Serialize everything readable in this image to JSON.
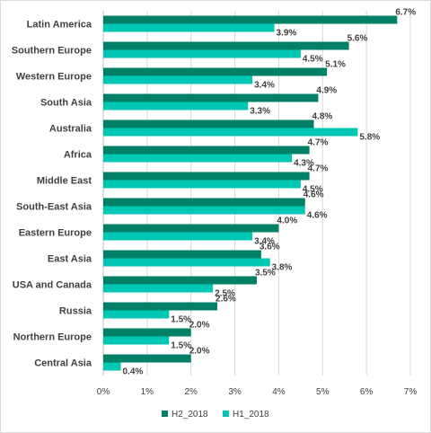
{
  "chart_data": {
    "type": "bar",
    "orientation": "horizontal",
    "categories": [
      "Latin America",
      "Southern Europe",
      "Western Europe",
      "South Asia",
      "Australia",
      "Africa",
      "Middle East",
      "South-East Asia",
      "Eastern Europe",
      "East Asia",
      "USA and Canada",
      "Russia",
      "Northern Europe",
      "Central Asia"
    ],
    "series": [
      {
        "name": "H2_2018",
        "color": "#008066",
        "values": [
          6.7,
          5.6,
          5.1,
          4.9,
          4.8,
          4.7,
          4.7,
          4.6,
          4.0,
          3.6,
          3.5,
          2.6,
          2.0,
          2.0
        ],
        "labels": [
          "6.7%",
          "5.6%",
          "5.1%",
          "4.9%",
          "4.8%",
          "4.7%",
          "4.7%",
          "4.6%",
          "4.0%",
          "3.6%",
          "3.5%",
          "2.6%",
          "2.0%",
          "2.0%"
        ]
      },
      {
        "name": "H1_2018",
        "color": "#00c7b3",
        "values": [
          3.9,
          4.5,
          3.4,
          3.3,
          5.8,
          4.3,
          4.5,
          4.6,
          3.4,
          3.8,
          2.5,
          1.5,
          1.5,
          0.4
        ],
        "labels": [
          "3.9%",
          "4.5%",
          "3.4%",
          "3.3%",
          "5.8%",
          "4.3%",
          "4.5%",
          "4.6%",
          "3.4%",
          "3.8%",
          "2.5%",
          "1.5%",
          "1.5%",
          "0.4%"
        ]
      }
    ],
    "xlim": [
      0,
      7
    ],
    "xticks": [
      "0%",
      "1%",
      "2%",
      "3%",
      "4%",
      "5%",
      "6%",
      "7%"
    ],
    "grid": true,
    "legend_position": "bottom"
  }
}
